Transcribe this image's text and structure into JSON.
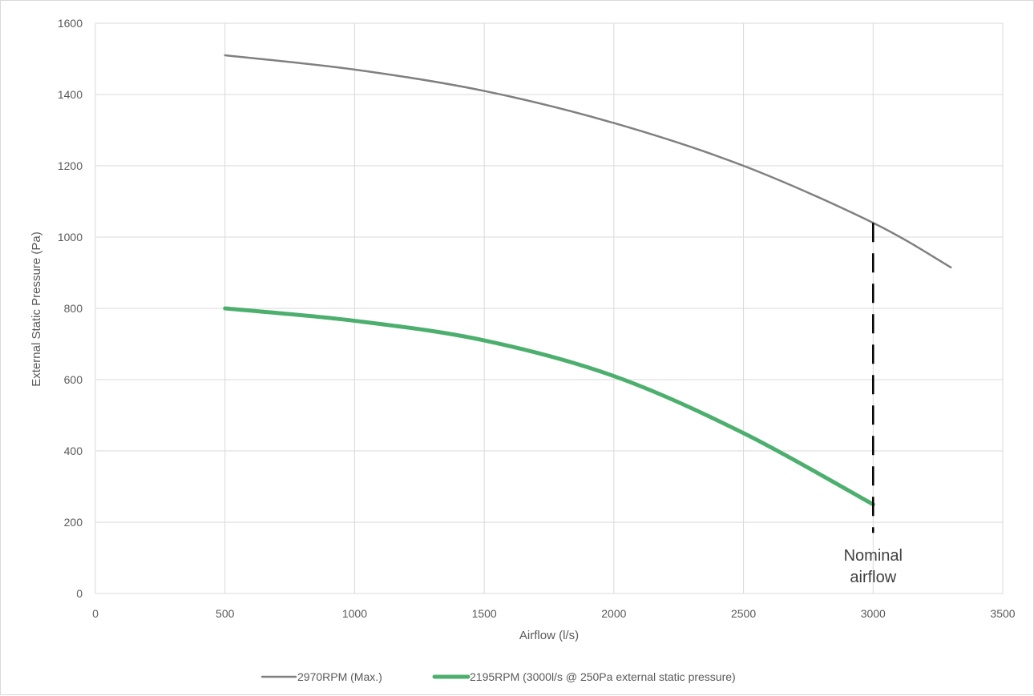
{
  "chart_data": {
    "type": "line",
    "title": "",
    "xlabel": "Airflow (l/s)",
    "ylabel": "External Static Pressure (Pa)",
    "xlim": [
      0,
      3500
    ],
    "ylim": [
      0,
      1600
    ],
    "xticks": [
      0,
      500,
      1000,
      1500,
      2000,
      2500,
      3000,
      3500
    ],
    "yticks": [
      0,
      200,
      400,
      600,
      800,
      1000,
      1200,
      1400,
      1600
    ],
    "xtick_labels": [
      "0",
      "500",
      "1000",
      "1500",
      "2000",
      "2500",
      "3000",
      "3500"
    ],
    "ytick_labels": [
      "0",
      "200",
      "400",
      "600",
      "800",
      "1000",
      "1200",
      "1400",
      "1600"
    ],
    "grid": true,
    "legend_position": "bottom",
    "series": [
      {
        "name": "2970RPM (Max.)",
        "color": "#808080",
        "x": [
          500,
          1000,
          1500,
          2000,
          2500,
          3000,
          3300
        ],
        "y": [
          1510,
          1470,
          1410,
          1320,
          1200,
          1040,
          915
        ]
      },
      {
        "name": "2195RPM (3000l/s @ 250Pa external static pressure)",
        "color": "#4caf6e",
        "x": [
          500,
          1000,
          1500,
          2000,
          2500,
          3000
        ],
        "y": [
          800,
          765,
          710,
          610,
          450,
          250
        ]
      }
    ],
    "annotations": [
      {
        "type": "vline",
        "x": 3000,
        "y_range": [
          170,
          1040
        ],
        "style": "dashed",
        "color": "#000000",
        "label_lines": [
          "Nominal",
          "airflow"
        ]
      }
    ]
  }
}
